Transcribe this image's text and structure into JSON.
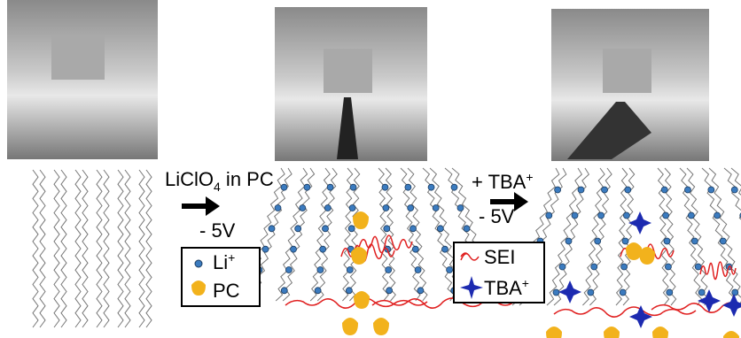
{
  "step1": {
    "electrolyte": "LiClO",
    "subscript": "4",
    "suffix": " in PC",
    "voltage": "- 5V"
  },
  "step2": {
    "additive": "+ TBA",
    "superscript": "+",
    "voltage": "- 5V"
  },
  "legend1": [
    {
      "label": "Li",
      "superscript": "+"
    },
    {
      "label": "PC"
    }
  ],
  "legend2": [
    {
      "label": "SEI"
    },
    {
      "label": "TBA",
      "superscript": "+"
    }
  ]
}
